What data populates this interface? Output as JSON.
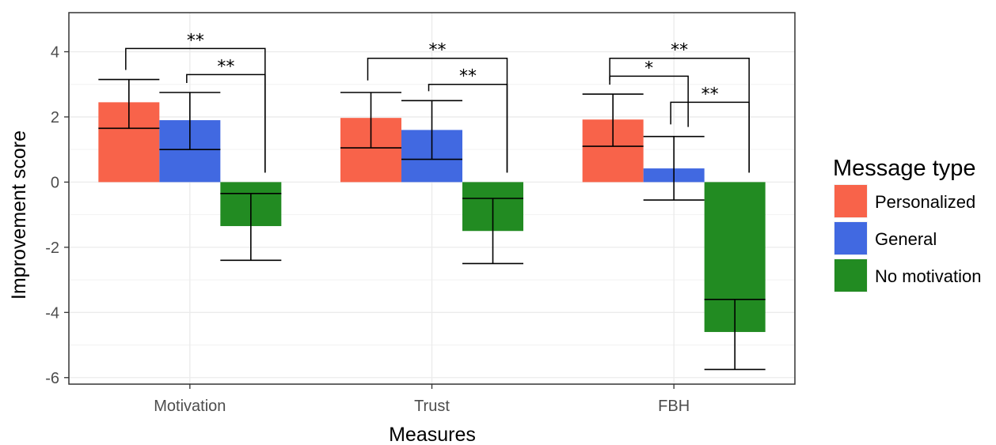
{
  "chart_data": {
    "type": "bar",
    "xlabel": "Measures",
    "ylabel": "Improvement score",
    "ylim": [
      -6.2,
      5.2
    ],
    "yticks": [
      -6,
      -4,
      -2,
      0,
      2,
      4
    ],
    "grid": true,
    "categories": [
      "Motivation",
      "Trust",
      "FBH"
    ],
    "legend": {
      "title": "Message type",
      "position": "right"
    },
    "series": [
      {
        "name": "Personalized",
        "color": "#f8634a",
        "values": [
          2.45,
          1.97,
          1.92
        ],
        "error_low": [
          1.65,
          1.05,
          1.1
        ],
        "error_high": [
          3.15,
          2.75,
          2.7
        ]
      },
      {
        "name": "General",
        "color": "#4169e1",
        "values": [
          1.9,
          1.6,
          0.42
        ],
        "error_low": [
          1.0,
          0.7,
          -0.55
        ],
        "error_high": [
          2.75,
          2.5,
          1.4
        ]
      },
      {
        "name": "No motivation",
        "color": "#228b22",
        "values": [
          -1.35,
          -1.5,
          -4.6
        ],
        "error_low": [
          -2.4,
          -2.5,
          -5.75
        ],
        "error_high": [
          -0.35,
          -0.5,
          -3.6
        ]
      }
    ],
    "significance": [
      {
        "category": 0,
        "from": 0,
        "to": 2,
        "label": "**",
        "height": 4.1
      },
      {
        "category": 0,
        "from": 1,
        "to": 2,
        "label": "**",
        "height": 3.3
      },
      {
        "category": 1,
        "from": 0,
        "to": 2,
        "label": "**",
        "height": 3.8
      },
      {
        "category": 1,
        "from": 1,
        "to": 2,
        "label": "**",
        "height": 3.0
      },
      {
        "category": 2,
        "from": 0,
        "to": 2,
        "label": "**",
        "height": 3.8
      },
      {
        "category": 2,
        "from": 0,
        "to": 1,
        "label": "*",
        "height": 3.25
      },
      {
        "category": 2,
        "from": 1,
        "to": 2,
        "label": "**",
        "height": 2.45
      }
    ]
  }
}
